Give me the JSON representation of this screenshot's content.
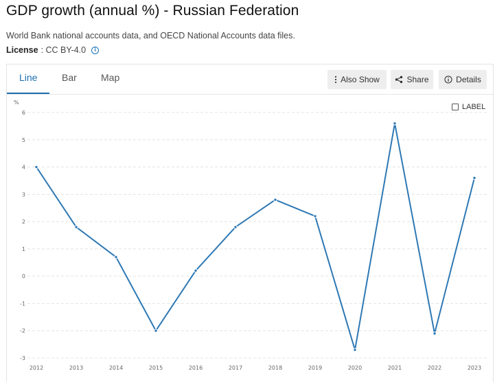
{
  "header": {
    "title": "GDP growth (annual %) - Russian Federation",
    "source": "World Bank national accounts data, and OECD National Accounts data files.",
    "license_label": "License",
    "license_value": " : CC BY-4.0"
  },
  "tabs": [
    {
      "label": "Line",
      "active": true
    },
    {
      "label": "Bar",
      "active": false
    },
    {
      "label": "Map",
      "active": false
    }
  ],
  "toolbar": {
    "also_show": "Also Show",
    "share": "Share",
    "details": "Details"
  },
  "label_toggle": {
    "text": "LABEL",
    "checked": false
  },
  "colors": {
    "accent": "#1a6fb0",
    "series": "#2d78b4"
  },
  "chart_data": {
    "type": "line",
    "ylabel": "%",
    "ylim": [
      -3,
      6
    ],
    "yticks": [
      -3,
      -2,
      -1,
      0,
      1,
      2,
      3,
      4,
      5,
      6
    ],
    "grid": true,
    "x": [
      "2012",
      "2013",
      "2014",
      "2015",
      "2016",
      "2017",
      "2018",
      "2019",
      "2020",
      "2021",
      "2022",
      "2023"
    ],
    "series": [
      {
        "values": [
          4.0,
          1.8,
          0.7,
          -2.0,
          0.2,
          1.8,
          2.8,
          2.2,
          -2.7,
          5.6,
          -2.1,
          3.6
        ]
      }
    ]
  }
}
